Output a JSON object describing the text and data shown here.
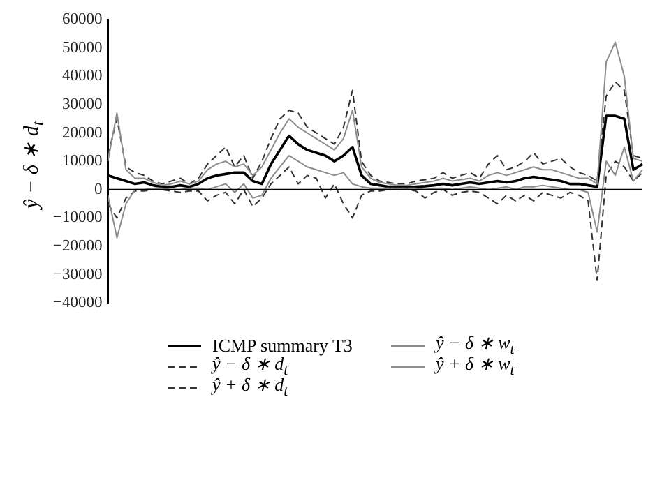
{
  "chart_data": {
    "type": "line",
    "ylabel": "ŷ − δ ∗ d$_{t}$",
    "legend": "bottom",
    "marker": "none",
    "grid": false,
    "tick_labels": "y",
    "categories": [
      null,
      null,
      null,
      null,
      null,
      null,
      null,
      null,
      null,
      null,
      null,
      null,
      null,
      null,
      null,
      null,
      null,
      null,
      null,
      null,
      null,
      null,
      null,
      null,
      null,
      null,
      null,
      null,
      null,
      null,
      null,
      null,
      null,
      null,
      null,
      null,
      null,
      null,
      null,
      null,
      null,
      null,
      null,
      null,
      null,
      null,
      null,
      null,
      null,
      null,
      null,
      null,
      null,
      null,
      null,
      null,
      null,
      null,
      null,
      null
    ],
    "ref_lines": [
      {
        "axis": "y",
        "value": 0,
        "color": "#000000"
      }
    ],
    "ylim": [
      -40000,
      60000
    ],
    "yticks": [
      -40000,
      -30000,
      -20000,
      -10000,
      0,
      10000,
      20000,
      30000,
      40000,
      50000,
      60000
    ],
    "series": [
      {
        "name": "ŷ + δ ∗ w$_{t}$",
        "color": "#8c8c8c",
        "line_style": "solid",
        "values": [
          10000,
          27000,
          7000,
          4000,
          4000,
          2500,
          1500,
          2000,
          3000,
          2000,
          3000,
          7000,
          9000,
          10000,
          8000,
          9000,
          5000,
          8000,
          14000,
          20000,
          25000,
          22000,
          20000,
          18000,
          16000,
          14000,
          18000,
          28000,
          8000,
          4000,
          2500,
          2000,
          1500,
          1500,
          2000,
          2500,
          3000,
          4000,
          3000,
          3500,
          4000,
          3000,
          5000,
          6000,
          5000,
          6000,
          7000,
          8000,
          7000,
          7000,
          6000,
          5000,
          4000,
          4000,
          2000,
          45000,
          52000,
          40000,
          11000,
          10000
        ]
      },
      {
        "name": "ŷ − δ ∗ w$_{t}$",
        "color": "#8c8c8c",
        "line_style": "solid",
        "values": [
          -2000,
          -17000,
          -5000,
          0,
          0,
          500,
          500,
          0,
          0,
          500,
          500,
          0,
          1000,
          2000,
          -1000,
          2000,
          -3000,
          -2000,
          4000,
          8000,
          12000,
          10000,
          8000,
          7000,
          6000,
          5000,
          6000,
          2000,
          1000,
          500,
          500,
          500,
          500,
          500,
          500,
          0,
          500,
          500,
          0,
          500,
          1000,
          500,
          0,
          500,
          1000,
          0,
          1000,
          1000,
          1500,
          1000,
          500,
          0,
          0,
          -1000,
          -15000,
          10000,
          5000,
          15000,
          3000,
          7000
        ]
      },
      {
        "name": "ŷ + δ ∗ d$_{t}$",
        "color": "#333333",
        "line_style": "dashed",
        "values": [
          12000,
          25000,
          8000,
          6000,
          5000,
          3000,
          2000,
          3000,
          4000,
          2000,
          4000,
          9000,
          12000,
          15000,
          8000,
          12000,
          4000,
          10000,
          18000,
          25000,
          28000,
          27000,
          22000,
          20000,
          18000,
          16000,
          22000,
          35000,
          10000,
          5000,
          3000,
          2500,
          2000,
          2000,
          3000,
          3500,
          4000,
          6000,
          4000,
          5000,
          6000,
          4000,
          9000,
          12000,
          7000,
          8000,
          10000,
          13000,
          9000,
          10000,
          11000,
          8000,
          6000,
          5000,
          3000,
          33000,
          38000,
          35000,
          12000,
          11000
        ]
      },
      {
        "name": "ŷ − δ ∗ d$_{t}$",
        "color": "#333333",
        "line_style": "dashed",
        "values": [
          -5000,
          -10000,
          -3000,
          -500,
          -500,
          0,
          0,
          -500,
          -1000,
          -500,
          -500,
          -4000,
          -2000,
          -1000,
          -5000,
          0,
          -6000,
          -3000,
          2000,
          5000,
          8000,
          2000,
          5000,
          4000,
          -3000,
          2000,
          -5000,
          -10000,
          -2000,
          -500,
          -500,
          0,
          0,
          0,
          -500,
          -3000,
          -1000,
          0,
          -2000,
          -1000,
          -500,
          -1000,
          -3000,
          -5000,
          -2000,
          -4000,
          -2000,
          -4000,
          -1000,
          -2000,
          -3000,
          -1000,
          -2000,
          -4000,
          -32000,
          5000,
          10000,
          8000,
          3000,
          6000
        ]
      },
      {
        "name": "ICMP summary T3",
        "color": "#000000",
        "line_style": "solid",
        "values": [
          5000,
          4000,
          3000,
          2000,
          2500,
          1500,
          1000,
          1000,
          1500,
          1000,
          2000,
          4000,
          5000,
          5500,
          6000,
          6000,
          3000,
          2000,
          9000,
          14000,
          19000,
          16000,
          14000,
          13000,
          12000,
          10000,
          12000,
          15000,
          5000,
          2000,
          1500,
          1000,
          1000,
          800,
          1000,
          1200,
          1500,
          2000,
          1500,
          2000,
          2500,
          2000,
          2500,
          3000,
          2500,
          3000,
          4000,
          4500,
          4000,
          3500,
          3000,
          2000,
          2000,
          1500,
          1000,
          26000,
          26000,
          25000,
          7000,
          9000
        ]
      }
    ]
  }
}
